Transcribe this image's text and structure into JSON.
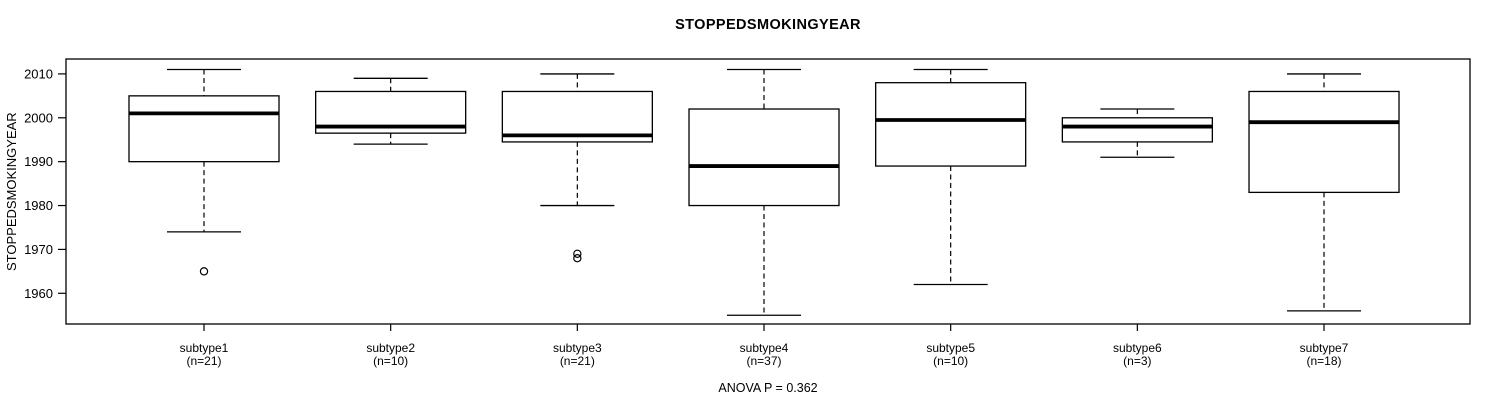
{
  "figure": {
    "title": "STOPPEDSMOKINGYEAR",
    "y_axis_title": "STOPPEDSMOKINGYEAR",
    "annotation": "ANOVA P = 0.362"
  },
  "chart_data": {
    "type": "boxplot",
    "title": "STOPPEDSMOKINGYEAR",
    "xlabel": "",
    "ylabel": "STOPPEDSMOKINGYEAR",
    "annotation": "ANOVA P = 0.362",
    "ylim": [
      1953,
      2013.4
    ],
    "yticks": [
      1960,
      1970,
      1980,
      1990,
      2000,
      2010
    ],
    "grid": false,
    "legend": "none",
    "groups": [
      {
        "label": "subtype1",
        "n": 21,
        "n_label": "(n=21)",
        "whisker_low": 1974,
        "q1": 1990,
        "median": 2001,
        "q3": 2005,
        "whisker_high": 2011,
        "outliers": [
          1965
        ]
      },
      {
        "label": "subtype2",
        "n": 10,
        "n_label": "(n=10)",
        "whisker_low": 1994,
        "q1": 1996.5,
        "median": 1998,
        "q3": 2006,
        "whisker_high": 2009,
        "outliers": []
      },
      {
        "label": "subtype3",
        "n": 21,
        "n_label": "(n=21)",
        "whisker_low": 1980,
        "q1": 1994.5,
        "median": 1996,
        "q3": 2006,
        "whisker_high": 2010,
        "outliers": [
          1969,
          1968
        ]
      },
      {
        "label": "subtype4",
        "n": 37,
        "n_label": "(n=37)",
        "whisker_low": 1955,
        "q1": 1980,
        "median": 1989,
        "q3": 2002,
        "whisker_high": 2011,
        "outliers": []
      },
      {
        "label": "subtype5",
        "n": 10,
        "n_label": "(n=10)",
        "whisker_low": 1962,
        "q1": 1989,
        "median": 1999.5,
        "q3": 2008,
        "whisker_high": 2011,
        "outliers": []
      },
      {
        "label": "subtype6",
        "n": 3,
        "n_label": "(n=3)",
        "whisker_low": 1991,
        "q1": 1994.5,
        "median": 1998,
        "q3": 2000,
        "whisker_high": 2002,
        "outliers": []
      },
      {
        "label": "subtype7",
        "n": 18,
        "n_label": "(n=18)",
        "whisker_low": 1956,
        "q1": 1983,
        "median": 1999,
        "q3": 2006,
        "whisker_high": 2010,
        "outliers": []
      }
    ]
  }
}
